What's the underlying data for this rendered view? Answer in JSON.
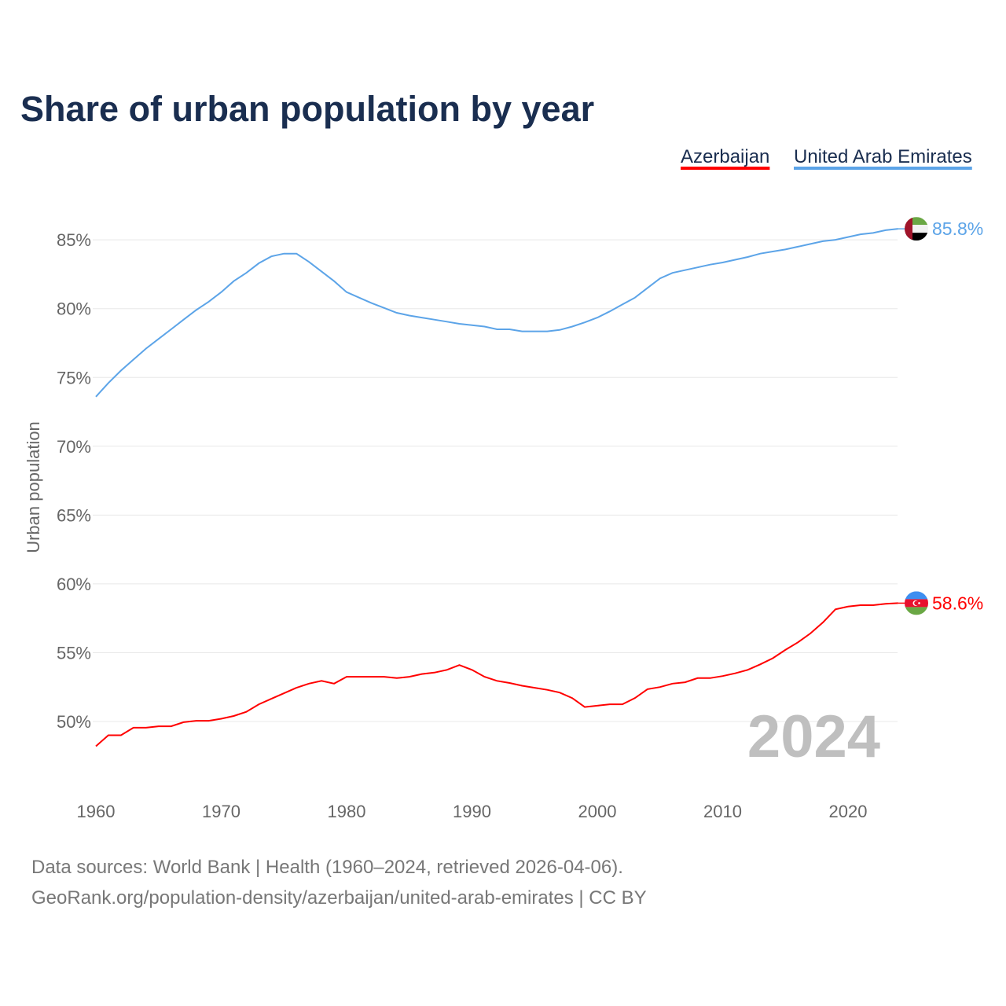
{
  "chart_data": {
    "type": "line",
    "title": "Share of urban population by year",
    "ylabel": "Urban population",
    "xlabel": "",
    "ylim": [
      45,
      88
    ],
    "xlim": [
      1960,
      2024
    ],
    "yticks": [
      50,
      55,
      60,
      65,
      70,
      75,
      80,
      85
    ],
    "ytick_labels": [
      "50%",
      "55%",
      "60%",
      "65%",
      "70%",
      "75%",
      "80%",
      "85%"
    ],
    "xticks": [
      1960,
      1970,
      1980,
      1990,
      2000,
      2010,
      2020
    ],
    "xtick_labels": [
      "1960",
      "1970",
      "1980",
      "1990",
      "2000",
      "2010",
      "2020"
    ],
    "grid": true,
    "legend_position": "top-right",
    "year_watermark": "2024",
    "x": [
      1960,
      1961,
      1962,
      1963,
      1964,
      1965,
      1966,
      1967,
      1968,
      1969,
      1970,
      1971,
      1972,
      1973,
      1974,
      1975,
      1976,
      1977,
      1978,
      1979,
      1980,
      1981,
      1982,
      1983,
      1984,
      1985,
      1986,
      1987,
      1988,
      1989,
      1990,
      1991,
      1992,
      1993,
      1994,
      1995,
      1996,
      1997,
      1998,
      1999,
      2000,
      2001,
      2002,
      2003,
      2004,
      2005,
      2006,
      2007,
      2008,
      2009,
      2010,
      2011,
      2012,
      2013,
      2014,
      2015,
      2016,
      2017,
      2018,
      2019,
      2020,
      2021,
      2022,
      2023,
      2024
    ],
    "series": [
      {
        "name": "Azerbaijan",
        "color": "#ff0000",
        "end_label": "58.6%",
        "flag": "azerbaijan-flag",
        "values": [
          48.2,
          49.0,
          49.0,
          49.55,
          49.55,
          49.65,
          49.65,
          49.95,
          50.05,
          50.05,
          50.2,
          50.4,
          50.7,
          51.25,
          51.65,
          52.05,
          52.45,
          52.75,
          52.95,
          52.75,
          53.25,
          53.25,
          53.25,
          53.25,
          53.15,
          53.25,
          53.45,
          53.55,
          53.75,
          54.1,
          53.75,
          53.25,
          52.95,
          52.8,
          52.6,
          52.45,
          52.3,
          52.1,
          51.7,
          51.05,
          51.15,
          51.25,
          51.25,
          51.7,
          52.35,
          52.5,
          52.75,
          52.85,
          53.15,
          53.15,
          53.3,
          53.5,
          53.75,
          54.15,
          54.6,
          55.2,
          55.75,
          56.4,
          57.2,
          58.15,
          58.35,
          58.45,
          58.45,
          58.55,
          58.6
        ]
      },
      {
        "name": "United Arab Emirates",
        "color": "#5ca4e8",
        "end_label": "85.8%",
        "flag": "uae-flag",
        "values": [
          73.6,
          74.6,
          75.5,
          76.3,
          77.1,
          77.8,
          78.5,
          79.2,
          79.9,
          80.5,
          81.2,
          82.0,
          82.6,
          83.3,
          83.8,
          84.0,
          84.0,
          83.4,
          82.7,
          82.0,
          81.2,
          80.8,
          80.4,
          80.05,
          79.7,
          79.5,
          79.35,
          79.2,
          79.05,
          78.9,
          78.8,
          78.7,
          78.5,
          78.5,
          78.35,
          78.35,
          78.35,
          78.45,
          78.7,
          79.0,
          79.35,
          79.8,
          80.3,
          80.8,
          81.5,
          82.2,
          82.6,
          82.8,
          83.0,
          83.2,
          83.35,
          83.55,
          83.75,
          84.0,
          84.15,
          84.3,
          84.5,
          84.7,
          84.9,
          85.0,
          85.2,
          85.4,
          85.5,
          85.7,
          85.8
        ]
      }
    ]
  },
  "footer": {
    "line1": "Data sources: World Bank | Health (1960–2024, retrieved 2026-04-06).",
    "line2": "GeoRank.org/population-density/azerbaijan/united-arab-emirates | CC BY"
  }
}
